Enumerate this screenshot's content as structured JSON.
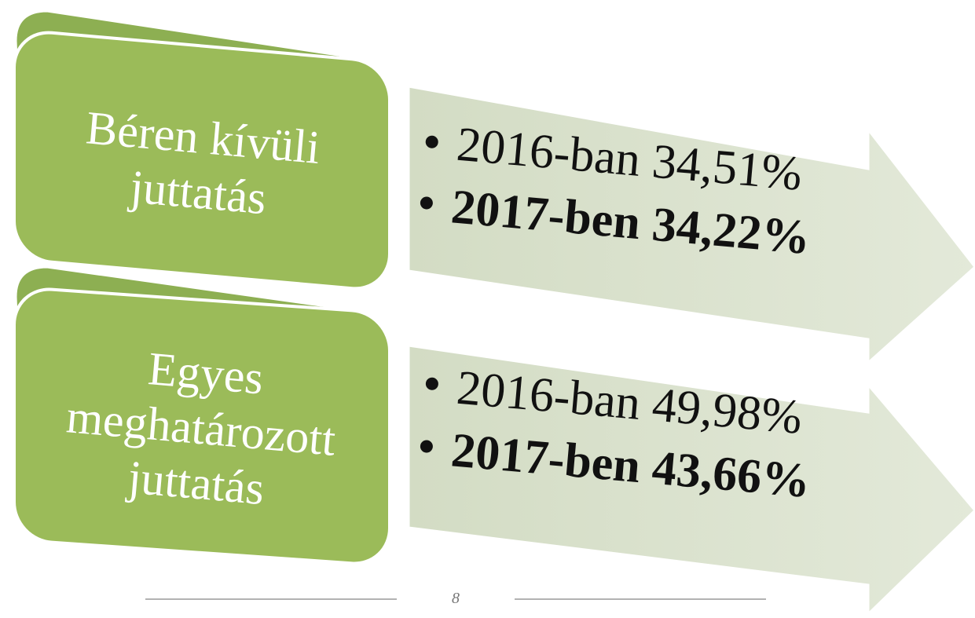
{
  "items": [
    {
      "label": [
        "Béren kívüli",
        "juttatás"
      ],
      "bullets": [
        "2016-ban 34,51%",
        "2017-ben 34,22%"
      ]
    },
    {
      "label": [
        "Egyes",
        "meghatározott",
        "juttatás"
      ],
      "bullets": [
        "2016-ban 49,98%",
        "2017-ben 43,66%"
      ]
    }
  ],
  "page_number": "8"
}
